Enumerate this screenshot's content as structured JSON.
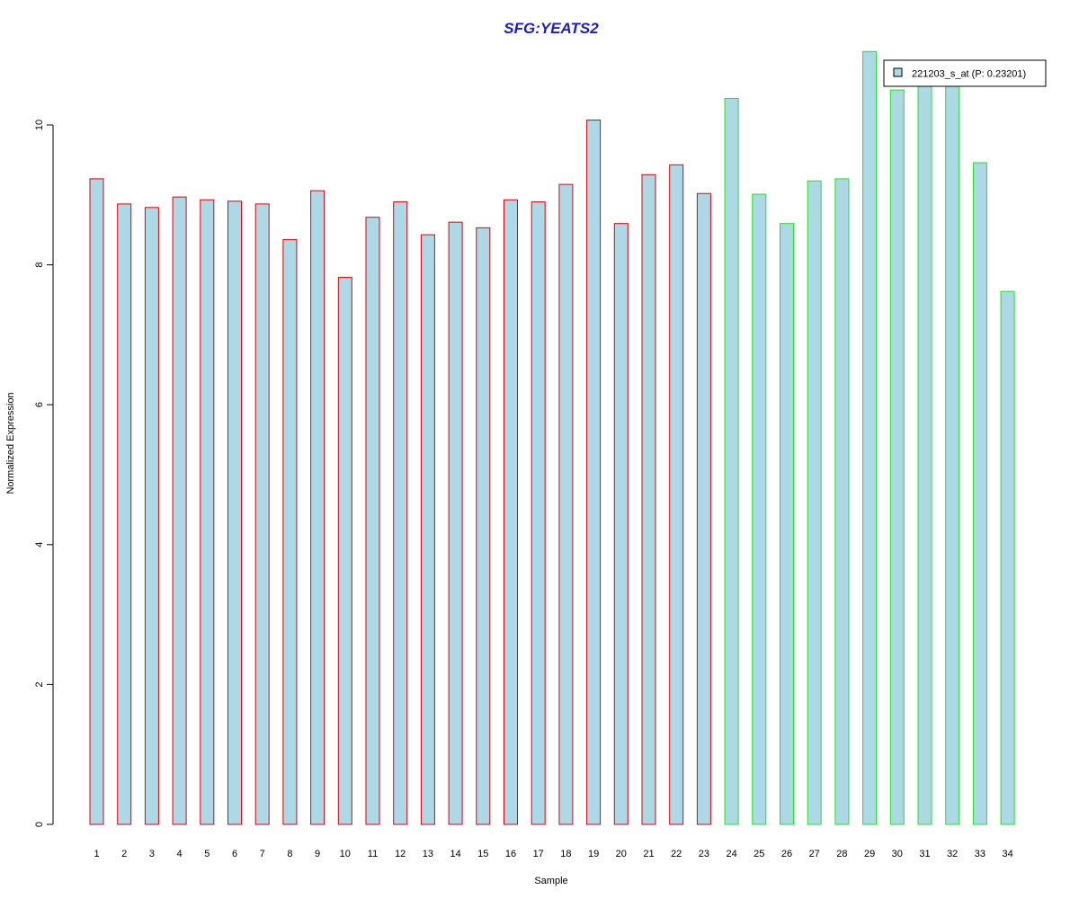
{
  "chart_data": {
    "type": "bar",
    "title": "SFG:YEATS2",
    "xlabel": "Sample",
    "ylabel": "Normalized Expression",
    "ylim": [
      0,
      11.2
    ],
    "yticks": [
      0,
      2,
      4,
      6,
      8,
      10
    ],
    "grid": false,
    "legend_position": "top-right",
    "categories": [
      "1",
      "2",
      "3",
      "4",
      "5",
      "6",
      "7",
      "8",
      "9",
      "10",
      "11",
      "12",
      "13",
      "14",
      "15",
      "16",
      "17",
      "18",
      "19",
      "20",
      "21",
      "22",
      "23",
      "24",
      "25",
      "26",
      "27",
      "28",
      "29",
      "30",
      "31",
      "32",
      "33",
      "34"
    ],
    "series": [
      {
        "name": "221203_s_at (P: 0.23201)",
        "values": [
          9.23,
          8.87,
          8.82,
          8.97,
          8.93,
          8.91,
          8.87,
          8.36,
          9.06,
          7.82,
          8.68,
          8.9,
          8.43,
          8.61,
          8.53,
          8.93,
          8.9,
          9.15,
          10.07,
          8.59,
          9.29,
          9.43,
          9.02,
          10.38,
          9.01,
          8.59,
          9.2,
          9.23,
          11.05,
          10.5,
          10.6,
          10.6,
          9.46,
          7.62
        ]
      }
    ],
    "groups": [
      "red",
      "red",
      "red",
      "red",
      "red",
      "red",
      "red",
      "red",
      "red",
      "red",
      "red",
      "red",
      "red",
      "red",
      "red",
      "red",
      "red",
      "red",
      "red",
      "red",
      "red",
      "red",
      "red",
      "green",
      "green",
      "green",
      "green",
      "green",
      "green",
      "green",
      "green",
      "green",
      "green",
      "green"
    ],
    "colors": {
      "fill": "#add8e6",
      "red_border": "#e0000b",
      "green_border": "#1ee51e",
      "title": "#1d1dcc",
      "axis": "#000000"
    }
  }
}
